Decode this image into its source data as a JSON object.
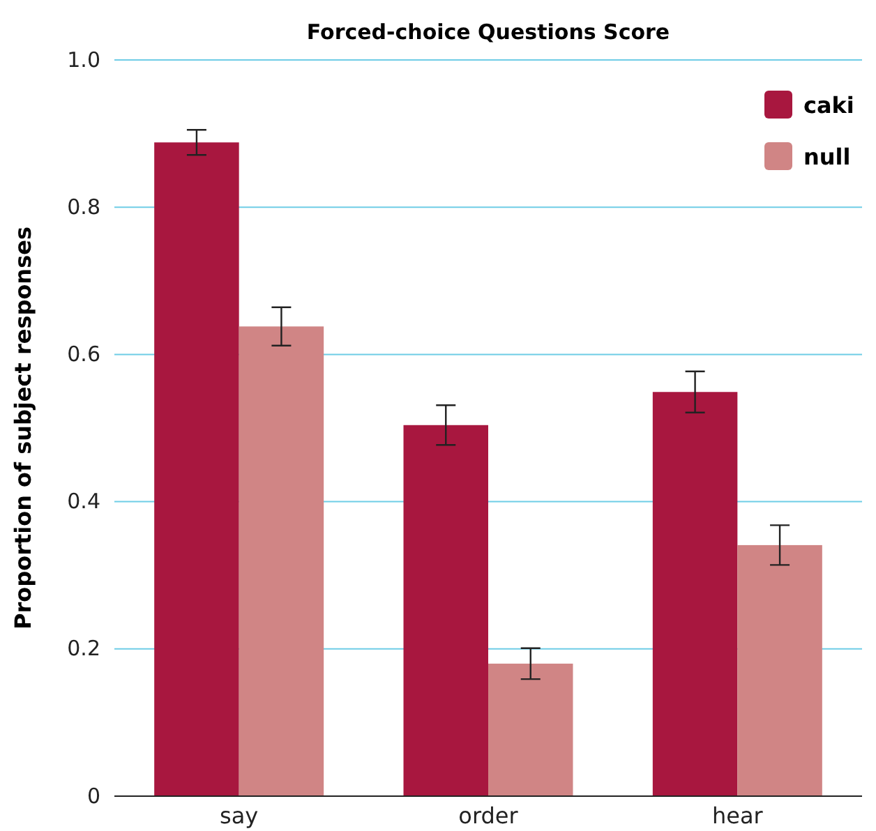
{
  "chart_data": {
    "type": "bar",
    "title": "Forced-choice Questions Score",
    "ylabel": "Proportion of subject responses",
    "categories": [
      "say",
      "order",
      "hear"
    ],
    "series": [
      {
        "name": "caki",
        "color": "#a8173f",
        "values": [
          0.888,
          0.504,
          0.549
        ],
        "errors": [
          0.017,
          0.027,
          0.028
        ]
      },
      {
        "name": "null",
        "color": "#d08585",
        "values": [
          0.638,
          0.18,
          0.341
        ],
        "errors": [
          0.026,
          0.021,
          0.027
        ]
      }
    ],
    "ylim": [
      0,
      1
    ],
    "yticks": [
      0,
      0.2,
      0.4,
      0.6,
      0.8,
      {
        "value": 1,
        "label": "1.0"
      }
    ],
    "grid": "y",
    "legend": "top right"
  }
}
